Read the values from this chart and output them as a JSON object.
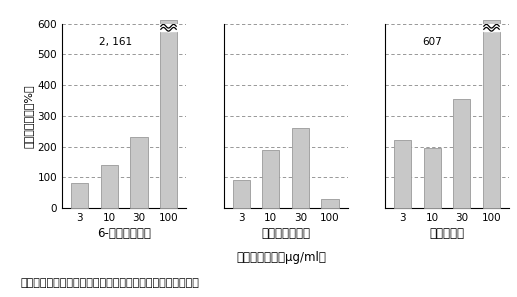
{
  "subplots": [
    {
      "title": "6-ジンゲロール",
      "categories": [
        "3",
        "10",
        "30",
        "100"
      ],
      "values": [
        80,
        140,
        230,
        2161
      ],
      "broken_bar_index": 3,
      "annotation": "2, 161",
      "ylim": [
        0,
        600
      ],
      "yticks": [
        0,
        100,
        200,
        300,
        400,
        500,
        600
      ]
    },
    {
      "title": "ショウガオール",
      "categories": [
        "3",
        "10",
        "30",
        "100"
      ],
      "values": [
        90,
        190,
        260,
        30
      ],
      "broken_bar_index": -1,
      "annotation": null,
      "ylim": [
        0,
        600
      ],
      "yticks": [
        0,
        100,
        200,
        300,
        400,
        500,
        600
      ]
    },
    {
      "title": "ジンゲロン",
      "categories": [
        "3",
        "10",
        "30",
        "100"
      ],
      "values": [
        220,
        195,
        355,
        607
      ],
      "broken_bar_index": 3,
      "annotation": "607",
      "ylim": [
        0,
        600
      ],
      "yticks": [
        0,
        100,
        200,
        300,
        400,
        500,
        600
      ]
    }
  ],
  "ylabel": "分化（対照群の%）",
  "xlabel": "サンプル濃度（μg/ml）",
  "bar_color": "#c8c8c8",
  "bar_edgecolor": "#999999",
  "fig_caption": "図１　ショウガ成分による前駆脂肪細胞の脂肪細胞分化促進",
  "subtitle_fontsize": 8.5,
  "tick_fontsize": 7.5,
  "ylabel_fontsize": 8,
  "xlabel_fontsize": 8.5,
  "caption_fontsize": 8
}
